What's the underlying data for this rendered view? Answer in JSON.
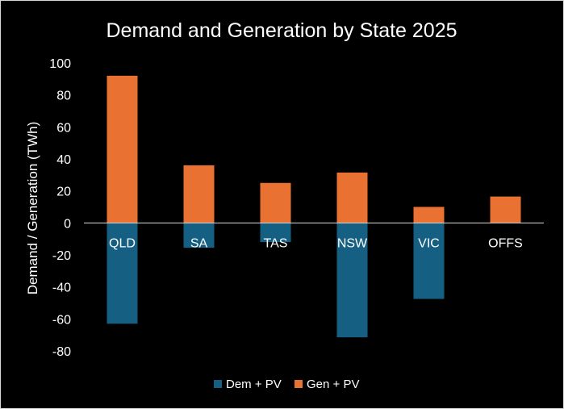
{
  "chart_data": {
    "type": "bar",
    "title": "Demand and Generation by State 2025",
    "xlabel": "",
    "ylabel": "Demand / Generation (TWh)",
    "ylim": [
      -80,
      100
    ],
    "yticks": [
      100,
      80,
      60,
      40,
      20,
      0,
      -20,
      -40,
      -60,
      -80
    ],
    "grid": false,
    "legend_position": "bottom",
    "categories": [
      "QLD",
      "SA",
      "TAS",
      "NSW",
      "VIC",
      "OFFS"
    ],
    "series": [
      {
        "name": "Dem + PV",
        "color": "#156082",
        "values": [
          -63,
          -15.5,
          -12,
          -71.5,
          -47.5,
          0
        ]
      },
      {
        "name": "Gen + PV",
        "color": "#e97132",
        "values": [
          92,
          36,
          25,
          31.5,
          10,
          16.5
        ]
      }
    ]
  }
}
